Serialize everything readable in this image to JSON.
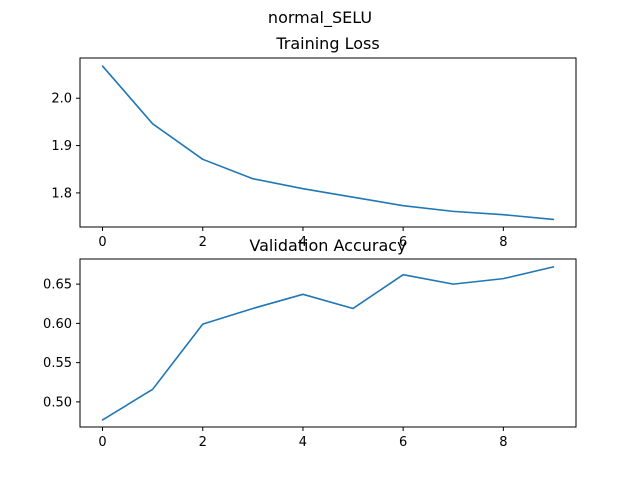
{
  "figure": {
    "suptitle": "normal_SELU"
  },
  "colors": {
    "line": "#1f77b4",
    "axes": "#000000",
    "background": "#ffffff"
  },
  "chart_data": [
    {
      "type": "line",
      "title": "Training Loss",
      "xlabel": "",
      "ylabel": "",
      "x": [
        0,
        1,
        2,
        3,
        4,
        5,
        6,
        7,
        8,
        9
      ],
      "series": [
        {
          "values": [
            2.068,
            1.946,
            1.871,
            1.83,
            1.809,
            1.791,
            1.773,
            1.761,
            1.754,
            1.744
          ]
        }
      ],
      "xlim": [
        -0.45,
        9.45
      ],
      "ylim": [
        1.728,
        2.085
      ],
      "xticks": [
        0,
        2,
        4,
        6,
        8
      ],
      "yticks": [
        1.8,
        1.9,
        2.0
      ],
      "ytick_labels": [
        "1.8",
        "1.9",
        "2.0"
      ],
      "grid": false,
      "legend": "none"
    },
    {
      "type": "line",
      "title": "Validation Accuracy",
      "xlabel": "",
      "ylabel": "",
      "x": [
        0,
        1,
        2,
        3,
        4,
        5,
        6,
        7,
        8,
        9
      ],
      "series": [
        {
          "values": [
            0.477,
            0.516,
            0.599,
            0.619,
            0.637,
            0.619,
            0.662,
            0.65,
            0.657,
            0.672
          ]
        }
      ],
      "xlim": [
        -0.45,
        9.45
      ],
      "ylim": [
        0.468,
        0.682
      ],
      "xticks": [
        0,
        2,
        4,
        6,
        8
      ],
      "yticks": [
        0.5,
        0.55,
        0.6,
        0.65
      ],
      "ytick_labels": [
        "0.50",
        "0.55",
        "0.60",
        "0.65"
      ],
      "grid": false,
      "legend": "none"
    }
  ]
}
